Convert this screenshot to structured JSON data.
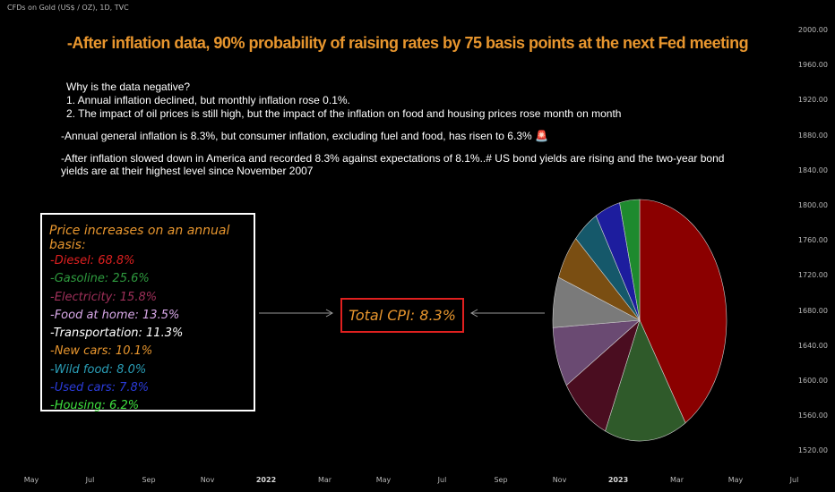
{
  "header": {
    "symbol": "CFDs on Gold (US$ / OZ), 1D, TVC"
  },
  "headline": "-After inflation data, 90% probability of raising rates by 75 basis points at the next Fed meeting",
  "notes": {
    "question": "Why is the data negative?",
    "point1": "1. Annual inflation declined, but monthly inflation rose 0.1%.",
    "point2": "2. The impact of oil prices is still high, but the impact of the inflation on food and housing prices rose month on month",
    "general_inflation": "-Annual general inflation is 8.3%, but consumer inflation, excluding fuel and food, has risen to 6.3% 🚨",
    "america": "-After inflation slowed down in America and recorded 8.3% against expectations of 8.1%..# US bond yields are rising and the two-year bond yields are at their highest level since November 2007"
  },
  "price_box": {
    "title": "Price increases on an annual basis:",
    "items": [
      {
        "label": "-Diesel: 68.8%",
        "color": "#e02020"
      },
      {
        "label": "-Gasoline: 25.6%",
        "color": "#2e9a3e"
      },
      {
        "label": "-Electricity: 15.8%",
        "color": "#a0305a"
      },
      {
        "label": "-Food at home: 13.5%",
        "color": "#d8a8e8"
      },
      {
        "label": "-Transportation: 11.3%",
        "color": "#ffffff"
      },
      {
        "label": "-New cars: 10.1%",
        "color": "#e8962e"
      },
      {
        "label": "-Wild food: 8.0%",
        "color": "#2a9fb8"
      },
      {
        "label": "-Used cars: 7.8%",
        "color": "#2b3cdc"
      },
      {
        "label": "-Housing: 6.2%",
        "color": "#3fe03f"
      }
    ]
  },
  "cpi_box": {
    "label": "Total CPI: 8.3%"
  },
  "pie_colors": [
    "#8b0000",
    "#2f5a2a",
    "#4a0d20",
    "#6a4a72",
    "#7a7a7a",
    "#7a4e12",
    "#15586a",
    "#1d1d9e",
    "#1e8a2e"
  ],
  "axis_right": [
    "2000.00",
    "1960.00",
    "1920.00",
    "1880.00",
    "1840.00",
    "1800.00",
    "1760.00",
    "1720.00",
    "1680.00",
    "1640.00",
    "1600.00",
    "1560.00",
    "1520.00"
  ],
  "axis_bottom": [
    {
      "label": "May",
      "year": false
    },
    {
      "label": "Jul",
      "year": false
    },
    {
      "label": "Sep",
      "year": false
    },
    {
      "label": "Nov",
      "year": false
    },
    {
      "label": "2022",
      "year": true
    },
    {
      "label": "Mar",
      "year": false
    },
    {
      "label": "May",
      "year": false
    },
    {
      "label": "Jul",
      "year": false
    },
    {
      "label": "Sep",
      "year": false
    },
    {
      "label": "Nov",
      "year": false
    },
    {
      "label": "2023",
      "year": true
    },
    {
      "label": "Mar",
      "year": false
    },
    {
      "label": "May",
      "year": false
    },
    {
      "label": "Jul",
      "year": false
    }
  ]
}
